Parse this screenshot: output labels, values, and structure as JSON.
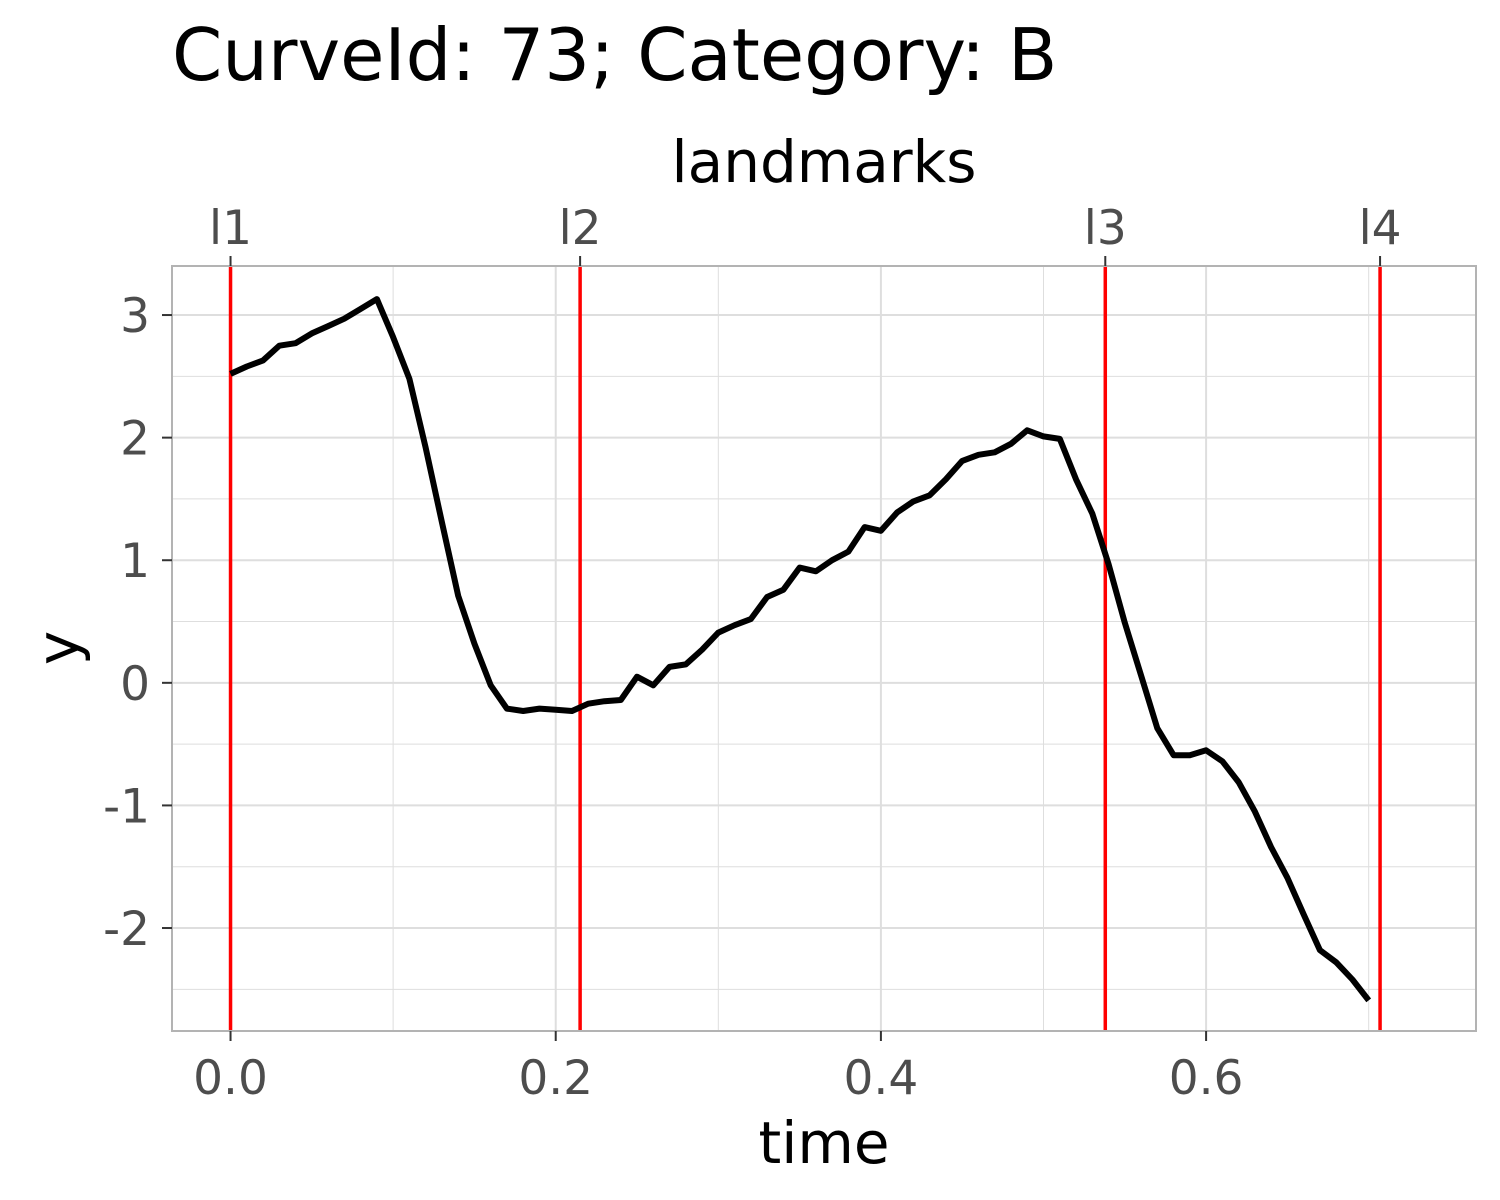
{
  "chart_data": {
    "type": "line",
    "title": "CurveId: 73; Category: B",
    "xlabel": "time",
    "ylabel": "y",
    "top_axis_label": "landmarks",
    "xlim": [
      -0.036,
      0.766
    ],
    "ylim": [
      -2.84,
      3.4
    ],
    "x_ticks": [
      0.0,
      0.2,
      0.4,
      0.6
    ],
    "x_tick_labels": [
      "0.0",
      "0.2",
      "0.4",
      "0.6"
    ],
    "y_ticks": [
      3,
      2,
      1,
      0,
      -1,
      -2
    ],
    "y_tick_labels": [
      "3",
      "2",
      "1",
      "0",
      "-1",
      "-2"
    ],
    "grid": true,
    "landmarks": [
      {
        "label": "l1",
        "x": 0.0
      },
      {
        "label": "l2",
        "x": 0.215
      },
      {
        "label": "l3",
        "x": 0.538
      },
      {
        "label": "l4",
        "x": 0.707
      }
    ],
    "colors": {
      "curve": "#000000",
      "landmark": "#ff0000",
      "grid": "#dedede",
      "frame": "#b3b3b3"
    },
    "series": [
      {
        "x": [
          0.0,
          0.01,
          0.02,
          0.03,
          0.04,
          0.05,
          0.06,
          0.07,
          0.08,
          0.09,
          0.1,
          0.11,
          0.12,
          0.13,
          0.14,
          0.15,
          0.16,
          0.17,
          0.18,
          0.19,
          0.2,
          0.21,
          0.22,
          0.23,
          0.24,
          0.25,
          0.26,
          0.27,
          0.28,
          0.29,
          0.3,
          0.31,
          0.32,
          0.33,
          0.34,
          0.35,
          0.36,
          0.37,
          0.38,
          0.39,
          0.4,
          0.41,
          0.42,
          0.43,
          0.44,
          0.45,
          0.46,
          0.47,
          0.48,
          0.49,
          0.5,
          0.51,
          0.52,
          0.53,
          0.54,
          0.55,
          0.56,
          0.57,
          0.58,
          0.59,
          0.6,
          0.61,
          0.62,
          0.63,
          0.64,
          0.65,
          0.66,
          0.67,
          0.68,
          0.69,
          0.7
        ],
        "y": [
          2.52,
          2.58,
          2.63,
          2.75,
          2.77,
          2.85,
          2.91,
          2.97,
          3.05,
          3.13,
          2.82,
          2.48,
          1.92,
          1.31,
          0.71,
          0.32,
          -0.02,
          -0.21,
          -0.23,
          -0.21,
          -0.22,
          -0.23,
          -0.17,
          -0.15,
          -0.14,
          0.05,
          -0.02,
          0.13,
          0.15,
          0.27,
          0.41,
          0.47,
          0.52,
          0.7,
          0.76,
          0.94,
          0.91,
          1.0,
          1.07,
          1.27,
          1.24,
          1.39,
          1.48,
          1.53,
          1.66,
          1.81,
          1.86,
          1.88,
          1.95,
          2.06,
          2.01,
          1.99,
          1.66,
          1.38,
          0.97,
          0.49,
          0.06,
          -0.37,
          -0.59,
          -0.59,
          -0.55,
          -0.64,
          -0.81,
          -1.05,
          -1.34,
          -1.59,
          -1.89,
          -2.18,
          -2.28,
          -2.42,
          -2.59
        ]
      }
    ]
  }
}
